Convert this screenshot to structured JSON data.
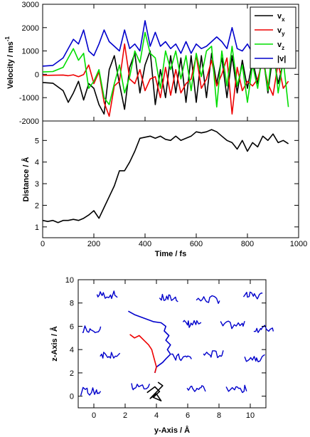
{
  "chart_data": [
    {
      "type": "line",
      "ylabel": "Velocity / ms",
      "ylabel_sup": "-1",
      "xlim": [
        0,
        1000
      ],
      "ylim": [
        -2000,
        3000
      ],
      "yticks": [
        "-2000",
        "-1000",
        "0",
        "1000",
        "2000",
        "3000"
      ],
      "legend": {
        "position": "top-right",
        "labels": [
          "v",
          "v",
          "v",
          "|v|"
        ],
        "subs": [
          "x",
          "y",
          "z",
          ""
        ]
      },
      "series": [
        {
          "name": "vx",
          "color": "#000000",
          "x": [
            0,
            40,
            80,
            100,
            120,
            140,
            160,
            180,
            200,
            220,
            240,
            260,
            280,
            300,
            320,
            340,
            360,
            380,
            400,
            420,
            440,
            460,
            480,
            500,
            520,
            540,
            560,
            580,
            600,
            620,
            640,
            660,
            680,
            700,
            720,
            740,
            760,
            780,
            800,
            820,
            840,
            860,
            880,
            900,
            920,
            940,
            960
          ],
          "y": [
            -350,
            -380,
            -700,
            -1200,
            -800,
            -300,
            -1100,
            -400,
            -600,
            -1300,
            -1700,
            200,
            800,
            -400,
            -1500,
            300,
            900,
            -800,
            400,
            1000,
            -1300,
            200,
            -1000,
            800,
            -800,
            700,
            -1200,
            800,
            -1200,
            800,
            -1000,
            900,
            -400,
            700,
            -1000,
            800,
            -800,
            600,
            -600,
            600,
            -400,
            900,
            -800,
            900,
            -400,
            500,
            300
          ]
        },
        {
          "name": "vy",
          "color": "#ee0000",
          "x": [
            0,
            40,
            80,
            100,
            120,
            140,
            160,
            180,
            200,
            220,
            240,
            260,
            280,
            300,
            320,
            340,
            360,
            380,
            400,
            420,
            440,
            460,
            480,
            500,
            520,
            540,
            560,
            580,
            600,
            620,
            640,
            660,
            680,
            700,
            720,
            740,
            760,
            780,
            800,
            820,
            840,
            860,
            880,
            900,
            920,
            940,
            960
          ],
          "y": [
            -50,
            -40,
            -30,
            -60,
            -20,
            -100,
            -10,
            400,
            -400,
            100,
            -1200,
            -1800,
            -500,
            -300,
            1300,
            -200,
            -400,
            200,
            -700,
            -200,
            -100,
            -1000,
            300,
            -900,
            200,
            -800,
            -400,
            -200,
            800,
            -600,
            -200,
            600,
            -500,
            0,
            700,
            -1700,
            300,
            -700,
            -300,
            -500,
            -200,
            600,
            -400,
            -900,
            500,
            -600,
            -300
          ]
        },
        {
          "name": "vz",
          "color": "#00dd00",
          "x": [
            0,
            40,
            80,
            100,
            120,
            140,
            160,
            180,
            200,
            220,
            240,
            260,
            280,
            300,
            320,
            340,
            360,
            380,
            400,
            420,
            440,
            460,
            480,
            500,
            520,
            540,
            560,
            580,
            600,
            620,
            640,
            660,
            680,
            700,
            720,
            740,
            760,
            780,
            800,
            820,
            840,
            860,
            880,
            900,
            920,
            940,
            960
          ],
          "y": [
            100,
            120,
            300,
            700,
            1100,
            600,
            900,
            -600,
            -300,
            200,
            -1000,
            -1300,
            -400,
            400,
            -800,
            -100,
            1000,
            500,
            1800,
            900,
            700,
            -600,
            1000,
            200,
            1000,
            -200,
            800,
            -700,
            900,
            -100,
            1000,
            1200,
            -1400,
            1000,
            -500,
            1200,
            -500,
            400,
            -1200,
            400,
            -600,
            1000,
            -700,
            1400,
            -800,
            600,
            -1400
          ]
        },
        {
          "name": "|v|",
          "color": "#0000cc",
          "x": [
            0,
            40,
            80,
            100,
            120,
            140,
            160,
            180,
            200,
            220,
            240,
            260,
            280,
            300,
            320,
            340,
            360,
            380,
            400,
            420,
            440,
            460,
            480,
            500,
            520,
            540,
            560,
            580,
            600,
            620,
            640,
            660,
            680,
            700,
            720,
            740,
            760,
            780,
            800,
            820,
            840,
            860,
            880,
            900,
            920,
            940,
            960
          ],
          "y": [
            350,
            380,
            700,
            1100,
            1500,
            1300,
            1900,
            1000,
            800,
            1300,
            1900,
            1400,
            1200,
            1000,
            1900,
            1100,
            1300,
            1000,
            2300,
            1200,
            1800,
            1200,
            1400,
            1100,
            1300,
            900,
            1400,
            900,
            1300,
            1100,
            1200,
            1400,
            1600,
            1400,
            1100,
            2000,
            1100,
            1000,
            1300,
            900,
            800,
            1100,
            900,
            1600,
            1000,
            900,
            700
          ]
        }
      ]
    },
    {
      "type": "line",
      "xlabel": "Time / fs",
      "ylabel": "Distance / Å",
      "xlim": [
        0,
        1000
      ],
      "ylim": [
        0.5,
        5.9
      ],
      "xticks": [
        "0",
        "200",
        "400",
        "600",
        "800",
        "1000"
      ],
      "yticks": [
        "1",
        "2",
        "3",
        "4",
        "5"
      ],
      "series": [
        {
          "color": "#000000",
          "x": [
            0,
            20,
            40,
            60,
            80,
            100,
            120,
            140,
            160,
            180,
            200,
            220,
            240,
            260,
            280,
            300,
            320,
            340,
            360,
            380,
            400,
            420,
            440,
            460,
            480,
            500,
            520,
            540,
            560,
            580,
            600,
            620,
            640,
            660,
            680,
            700,
            720,
            740,
            760,
            780,
            800,
            820,
            840,
            860,
            880,
            900,
            920,
            940,
            960
          ],
          "y": [
            1.3,
            1.25,
            1.3,
            1.2,
            1.3,
            1.3,
            1.35,
            1.3,
            1.4,
            1.55,
            1.75,
            1.4,
            1.9,
            2.4,
            2.9,
            3.6,
            3.6,
            4.0,
            4.5,
            5.1,
            5.15,
            5.2,
            5.1,
            5.2,
            5.05,
            5.0,
            5.2,
            5.0,
            5.1,
            5.2,
            5.4,
            5.35,
            5.4,
            5.5,
            5.4,
            5.2,
            5.0,
            4.9,
            4.6,
            5.0,
            4.5,
            4.9,
            4.7,
            5.2,
            5.0,
            5.3,
            4.9,
            5.0,
            4.85
          ]
        }
      ]
    },
    {
      "type": "scatter",
      "xlabel": "y-Axis / Å",
      "ylabel": "z-Axis / Å",
      "xlim": [
        -1,
        11
      ],
      "ylim": [
        -1,
        10
      ],
      "xticks": [
        "0",
        "2",
        "4",
        "6",
        "8",
        "10"
      ],
      "yticks": [
        "0",
        "2",
        "4",
        "6",
        "8",
        "10"
      ],
      "clusters": [
        {
          "color": "#0000cc",
          "center": [
            0.6,
            8.7
          ]
        },
        {
          "color": "#0000cc",
          "center": [
            4.6,
            8.4
          ]
        },
        {
          "color": "#0000cc",
          "center": [
            7.0,
            8.3
          ]
        },
        {
          "color": "#0000cc",
          "center": [
            10.0,
            8.6
          ]
        },
        {
          "color": "#0000cc",
          "center": [
            -0.3,
            5.8
          ]
        },
        {
          "color": "#0000cc",
          "center": [
            6.1,
            6.2
          ]
        },
        {
          "color": "#0000cc",
          "center": [
            8.5,
            6.1
          ]
        },
        {
          "color": "#0000cc",
          "center": [
            10.6,
            5.8
          ]
        },
        {
          "color": "#0000cc",
          "center": [
            0.8,
            3.6
          ]
        },
        {
          "color": "#0000cc",
          "center": [
            5.3,
            3.3
          ]
        },
        {
          "color": "#0000cc",
          "center": [
            7.4,
            3.6
          ]
        },
        {
          "color": "#0000cc",
          "center": [
            10.0,
            3.3
          ]
        },
        {
          "color": "#0000cc",
          "center": [
            -0.4,
            0.4
          ]
        },
        {
          "color": "#0000cc",
          "center": [
            2.8,
            0.8
          ]
        },
        {
          "color": "#0000cc",
          "center": [
            6.4,
            0.7
          ]
        },
        {
          "color": "#0000cc",
          "center": [
            8.8,
            0.6
          ]
        }
      ],
      "paths": [
        {
          "color": "#0000cc",
          "points": [
            [
              2.2,
              7.3
            ],
            [
              2.6,
              7.0
            ],
            [
              3.0,
              6.8
            ],
            [
              3.4,
              6.6
            ],
            [
              3.8,
              6.4
            ],
            [
              4.3,
              6.3
            ],
            [
              4.6,
              6.0
            ],
            [
              4.5,
              5.6
            ],
            [
              4.8,
              5.2
            ],
            [
              4.6,
              4.8
            ],
            [
              4.9,
              4.4
            ],
            [
              4.7,
              4.0
            ],
            [
              4.9,
              3.6
            ],
            [
              4.6,
              3.2
            ],
            [
              4.4,
              2.9
            ],
            [
              4.0,
              2.5
            ],
            [
              3.9,
              2.0
            ]
          ]
        },
        {
          "color": "#ee0000",
          "points": [
            [
              2.3,
              5.3
            ],
            [
              2.6,
              5.0
            ],
            [
              2.9,
              5.2
            ],
            [
              3.2,
              4.8
            ],
            [
              3.5,
              4.4
            ],
            [
              3.7,
              4.0
            ],
            [
              3.8,
              3.5
            ],
            [
              3.9,
              3.0
            ],
            [
              4.0,
              2.5
            ],
            [
              3.9,
              2.0
            ]
          ]
        },
        {
          "color": "#000000",
          "points": [
            [
              3.4,
              0.3
            ],
            [
              3.9,
              0.8
            ],
            [
              4.2,
              0.4
            ],
            [
              3.8,
              -0.1
            ],
            [
              4.3,
              -0.4
            ],
            [
              4.0,
              0.2
            ],
            [
              3.6,
              -0.2
            ],
            [
              4.4,
              0.9
            ],
            [
              4.1,
              1.2
            ]
          ]
        }
      ]
    }
  ]
}
